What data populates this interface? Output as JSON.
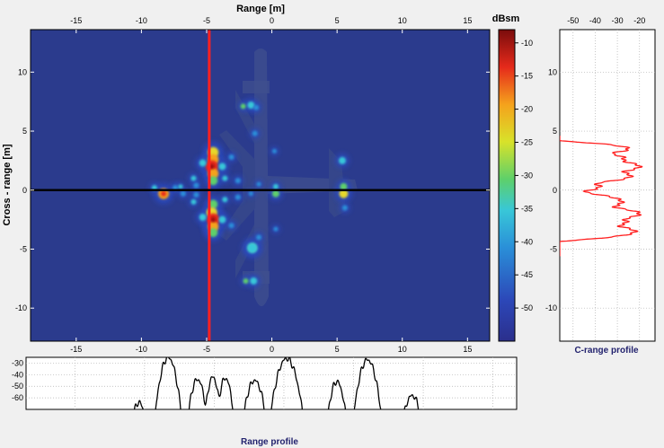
{
  "sar_image": {
    "xlabel": "Range [m]",
    "ylabel": "Cross - range [m]",
    "x_ticks": [
      -15,
      -10,
      -5,
      0,
      5,
      10,
      15
    ],
    "y_ticks": [
      10,
      5,
      0,
      -5,
      -10
    ],
    "xlim": [
      -18.5,
      16.7
    ],
    "ylim": [
      -12.8,
      13.6
    ],
    "cursor": {
      "range_m": -4.8,
      "cross_range_m": 0
    },
    "background_color": "#2b3b8d",
    "cursor_colors": {
      "vertical": "#ff2020",
      "horizontal": "#000000"
    }
  },
  "colorbar": {
    "unit": "dBsm",
    "ticks": [
      -10,
      -15,
      -20,
      -25,
      -30,
      -35,
      -40,
      -45,
      -50
    ],
    "range": [
      -55,
      -8
    ],
    "colormap": "jet"
  },
  "range_profile": {
    "title": "Range profile",
    "y_ticks": [
      -30,
      -40,
      -50,
      -60
    ],
    "ylim": [
      -70,
      -25
    ],
    "x_ticks": [
      -15,
      -10,
      -5,
      0,
      5,
      10,
      15
    ],
    "xlim": [
      -18.5,
      16.7
    ],
    "line_color": "#000000"
  },
  "crange_profile": {
    "title": "C-range profile",
    "x_ticks": [
      -50,
      -40,
      -30,
      -20
    ],
    "xlim": [
      -56,
      -13
    ],
    "y_ticks": [
      10,
      5,
      0,
      -5,
      -10
    ],
    "ylim": [
      -12.8,
      13.6
    ],
    "line_color": "#ff2020"
  }
}
